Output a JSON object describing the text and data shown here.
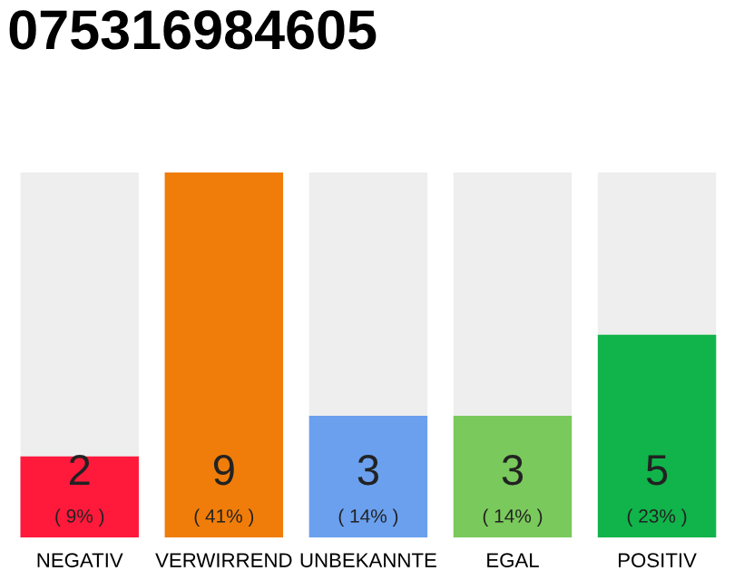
{
  "chart_data": {
    "type": "bar",
    "title": "075316984605",
    "categories": [
      "NEGATIV",
      "VERWIRREND",
      "UNBEKANNTE",
      "EGAL",
      "POSITIV"
    ],
    "values": [
      2,
      9,
      3,
      3,
      5
    ],
    "colors": [
      "#ff1a3c",
      "#f07d0a",
      "#6aa0ee",
      "#7ac95c",
      "#10b44a"
    ],
    "value_labels": [
      "2\n( 9% )",
      "9\n( 41% )",
      "3\n( 14% )",
      "3\n( 14% )",
      "5\n( 23% )"
    ],
    "grid": false,
    "legend": false
  }
}
